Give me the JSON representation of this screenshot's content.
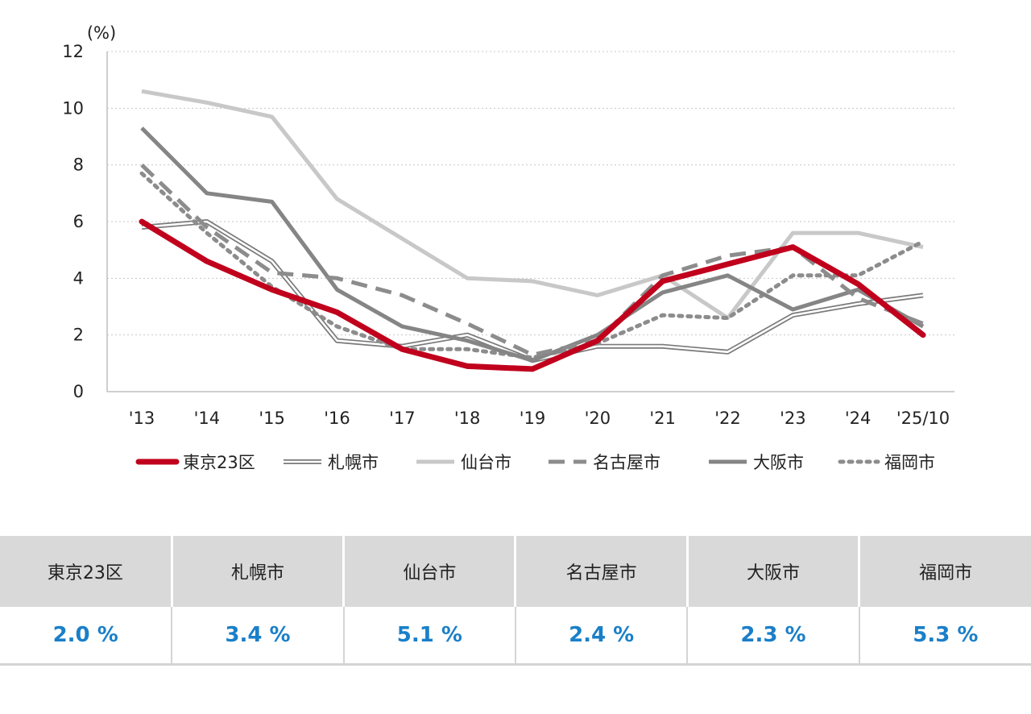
{
  "chart_data": {
    "type": "line",
    "ylabel": "(%)",
    "ylim": [
      0,
      12
    ],
    "yticks": [
      "0",
      "2",
      "4",
      "6",
      "8",
      "10",
      "12"
    ],
    "categories": [
      "'13",
      "'14",
      "'15",
      "'16",
      "'17",
      "'18",
      "'19",
      "'20",
      "'21",
      "'22",
      "'23",
      "'24",
      "'25/10"
    ],
    "grid": "horizontal-dotted",
    "legend_position": "bottom",
    "series": [
      {
        "name": "札幌市",
        "style": "double",
        "color": "#7a7a7a",
        "values": [
          5.8,
          6.0,
          4.6,
          1.8,
          1.6,
          2.0,
          1.1,
          1.6,
          1.6,
          1.4,
          2.7,
          3.1,
          3.4
        ]
      },
      {
        "name": "仙台市",
        "style": "solid",
        "color": "#c8c8c8",
        "values": [
          10.6,
          10.2,
          9.7,
          6.8,
          5.4,
          4.0,
          3.9,
          3.4,
          4.1,
          2.6,
          5.6,
          5.6,
          5.1
        ]
      },
      {
        "name": "福岡市",
        "style": "dotted",
        "color": "#8c8c8c",
        "values": [
          7.7,
          5.6,
          3.7,
          2.3,
          1.5,
          1.5,
          1.2,
          1.7,
          2.7,
          2.6,
          4.1,
          4.1,
          5.3
        ]
      },
      {
        "name": "大阪市",
        "style": "solid",
        "color": "#858585",
        "values": [
          9.3,
          7.0,
          6.7,
          3.6,
          2.3,
          1.8,
          1.1,
          2.0,
          3.5,
          4.1,
          2.9,
          3.6,
          2.3
        ]
      },
      {
        "name": "名古屋市",
        "style": "dashed",
        "color": "#8c8c8c",
        "values": [
          8.0,
          5.8,
          4.2,
          4.0,
          3.4,
          2.4,
          1.3,
          1.8,
          4.1,
          4.8,
          5.1,
          3.3,
          2.4
        ]
      },
      {
        "name": "東京23区",
        "style": "solid-bold",
        "color": "#c0001c",
        "values": [
          6.0,
          4.6,
          3.6,
          2.8,
          1.5,
          0.9,
          0.8,
          1.8,
          3.9,
          4.5,
          5.1,
          3.8,
          2.0
        ]
      }
    ],
    "legend": [
      {
        "name": "東京23区",
        "style": "solid-bold",
        "color": "#c0001c"
      },
      {
        "name": "札幌市",
        "style": "double",
        "color": "#7a7a7a"
      },
      {
        "name": "仙台市",
        "style": "solid",
        "color": "#c8c8c8"
      },
      {
        "name": "名古屋市",
        "style": "dashed",
        "color": "#8c8c8c"
      },
      {
        "name": "大阪市",
        "style": "solid",
        "color": "#858585"
      },
      {
        "name": "福岡市",
        "style": "dotted",
        "color": "#8c8c8c"
      }
    ]
  },
  "summary": {
    "headers": [
      "東京23区",
      "札幌市",
      "仙台市",
      "名古屋市",
      "大阪市",
      "福岡市"
    ],
    "values": [
      "2.0 %",
      "3.4 %",
      "5.1 %",
      "2.4 %",
      "2.3 %",
      "5.3 %"
    ]
  }
}
